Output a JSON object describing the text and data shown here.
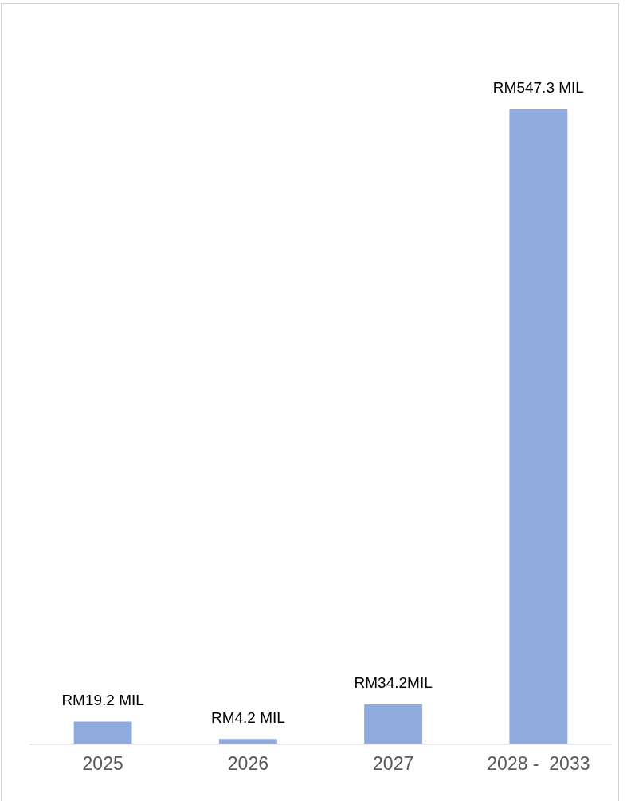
{
  "chart_data": {
    "type": "bar",
    "categories": [
      "2025",
      "2026",
      "2027",
      "2028 -  2033"
    ],
    "values": [
      19.2,
      4.2,
      34.2,
      547.3
    ],
    "value_labels": [
      "RM19.2 MIL",
      "RM4.2 MIL",
      "RM34.2MIL",
      "RM547.3 MIL"
    ],
    "color": "#8faadc",
    "grid": false,
    "legend": false
  }
}
